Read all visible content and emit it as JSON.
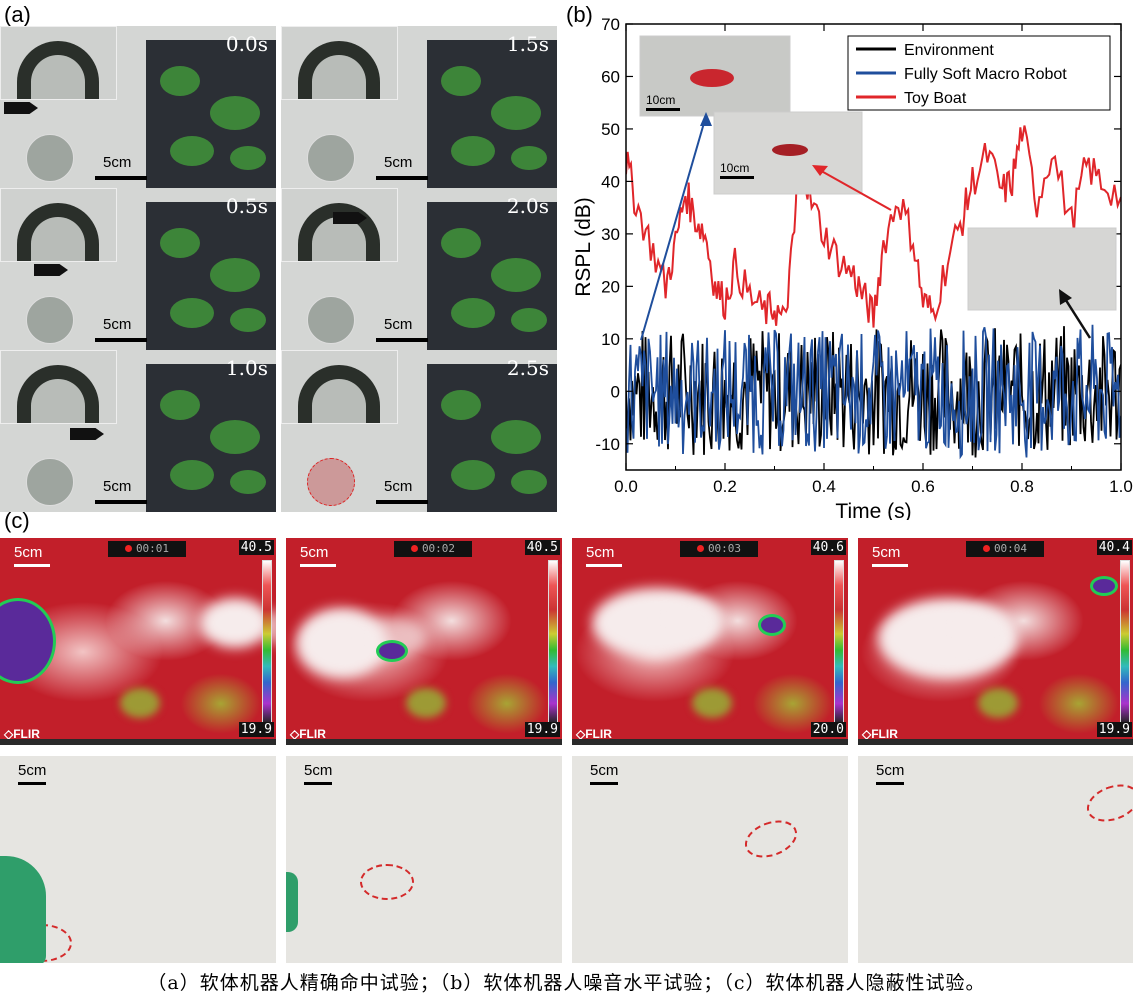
{
  "panel_labels": {
    "a": "(a)",
    "b": "(b)",
    "c": "(c)"
  },
  "panel_a": {
    "frames": [
      {
        "time": "0.0s",
        "scale": "5cm"
      },
      {
        "time": "1.5s",
        "scale": "5cm"
      },
      {
        "time": "0.5s",
        "scale": "5cm"
      },
      {
        "time": "2.0s",
        "scale": "5cm"
      },
      {
        "time": "1.0s",
        "scale": "5cm"
      },
      {
        "time": "2.5s",
        "scale": "5cm"
      }
    ]
  },
  "panel_b": {
    "inset_scales": [
      "10cm",
      "10cm"
    ]
  },
  "chart_data": {
    "type": "line",
    "xlabel": "Time (s)",
    "ylabel": "RSPL (dB)",
    "xlim": [
      0.0,
      1.0
    ],
    "ylim": [
      -15,
      70
    ],
    "xticks": [
      "0.0",
      "0.2",
      "0.4",
      "0.6",
      "0.8",
      "1.0"
    ],
    "yticks": [
      "-10",
      "0",
      "10",
      "20",
      "30",
      "40",
      "50",
      "60",
      "70"
    ],
    "legend_position": "top-right",
    "series": [
      {
        "name": "Environment",
        "color": "#000000",
        "kind": "noise",
        "mean": 0,
        "amplitude": 12
      },
      {
        "name": "Fully Soft Macro Robot",
        "color": "#1f4e9c",
        "kind": "noise",
        "mean": 0,
        "amplitude": 12
      },
      {
        "name": "Toy Boat",
        "color": "#e0262a",
        "kind": "line",
        "x": [
          0.0,
          0.02,
          0.05,
          0.08,
          0.1,
          0.12,
          0.14,
          0.16,
          0.18,
          0.2,
          0.22,
          0.25,
          0.28,
          0.3,
          0.32,
          0.34,
          0.35,
          0.37,
          0.4,
          0.43,
          0.46,
          0.48,
          0.5,
          0.52,
          0.55,
          0.58,
          0.6,
          0.62,
          0.65,
          0.68,
          0.7,
          0.73,
          0.76,
          0.78,
          0.8,
          0.83,
          0.86,
          0.9,
          0.93,
          0.96,
          1.0
        ],
        "y": [
          44,
          36,
          28,
          20,
          28,
          38,
          33,
          30,
          20,
          17,
          24,
          18,
          15,
          16,
          13,
          30,
          48,
          37,
          30,
          25,
          22,
          18,
          14,
          28,
          37,
          29,
          17,
          15,
          25,
          33,
          40,
          45,
          38,
          40,
          50,
          36,
          46,
          32,
          43,
          40,
          37
        ]
      }
    ]
  },
  "panel_c": {
    "thermal": [
      {
        "scale": "5cm",
        "rec": "00:01",
        "tmax": "40.5",
        "tmin": "19.9",
        "brand": "FLIR"
      },
      {
        "scale": "5cm",
        "rec": "00:02",
        "tmax": "40.5",
        "tmin": "19.9",
        "brand": "FLIR"
      },
      {
        "scale": "5cm",
        "rec": "00:03",
        "tmax": "40.6",
        "tmin": "20.0",
        "brand": "FLIR"
      },
      {
        "scale": "5cm",
        "rec": "00:04",
        "tmax": "40.4",
        "tmin": "19.9",
        "brand": "FLIR"
      }
    ],
    "visible": [
      {
        "scale": "5cm"
      },
      {
        "scale": "5cm"
      },
      {
        "scale": "5cm"
      },
      {
        "scale": "5cm"
      }
    ]
  },
  "caption": "（a）软体机器人精确命中试验；（b）软体机器人噪音水平试验；（c）软体机器人隐蔽性试验。"
}
